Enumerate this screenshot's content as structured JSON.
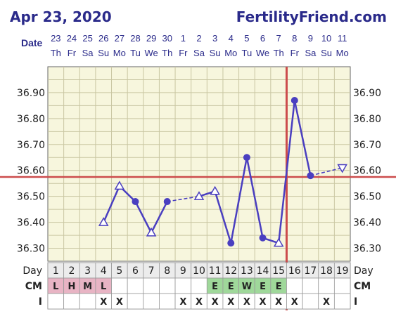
{
  "header": {
    "date": "Apr 23, 2020",
    "site": "FertilityFriend.com"
  },
  "row_labels": {
    "date": "Date",
    "day": "Day",
    "cm": "CM",
    "intercourse": "I"
  },
  "colors": {
    "grid_bg": "#f7f6dd",
    "grid_line": "#c9c6a2",
    "grid_border": "#666666",
    "temp_line": "#4a3fc0",
    "coverline": "#cc4c4c",
    "ovulation_line": "#cc4c4c",
    "cm_menstrual": "#e8b4c4",
    "cm_fertile": "#9fd89a",
    "text_primary": "#2a2a8a"
  },
  "chart_data": {
    "type": "line",
    "title": "",
    "y_axis": {
      "range": [
        36.25,
        37.0
      ],
      "ticks": [
        36.3,
        36.4,
        36.5,
        36.6,
        36.7,
        36.8,
        36.9
      ],
      "tick_labels": [
        "36.30",
        "36.40",
        "36.50",
        "36.60",
        "36.70",
        "36.80",
        "36.90"
      ]
    },
    "dates": [
      "23",
      "24",
      "25",
      "26",
      "27",
      "28",
      "29",
      "30",
      "1",
      "2",
      "3",
      "4",
      "5",
      "6",
      "7",
      "8",
      "9",
      "10",
      "11"
    ],
    "weekdays": [
      "Th",
      "Fr",
      "Sa",
      "Su",
      "Mo",
      "Tu",
      "We",
      "Th",
      "Fr",
      "Sa",
      "Su",
      "Mo",
      "Tu",
      "We",
      "Th",
      "Fr",
      "Sa",
      "Su",
      "Mo"
    ],
    "cycle_days": [
      1,
      2,
      3,
      4,
      5,
      6,
      7,
      8,
      9,
      10,
      11,
      12,
      13,
      14,
      15,
      16,
      17,
      18,
      19
    ],
    "temperatures": [
      null,
      null,
      null,
      36.4,
      36.54,
      36.48,
      36.36,
      36.48,
      null,
      36.5,
      36.52,
      36.32,
      36.65,
      36.34,
      36.32,
      36.87,
      36.58,
      null,
      36.61
    ],
    "markers": [
      "",
      "",
      "",
      "open-triangle",
      "open-triangle",
      "filled",
      "open-triangle",
      "filled",
      "",
      "open-triangle",
      "open-triangle",
      "filled",
      "filled",
      "filled",
      "open-triangle",
      "filled",
      "filled",
      "",
      "open-triangle-down"
    ],
    "dashed_segments": [
      [
        8,
        10
      ],
      [
        17,
        19
      ]
    ],
    "coverline": 36.575,
    "ovulation_day": 15,
    "cervical_mucus": [
      "L",
      "H",
      "M",
      "L",
      "",
      "",
      "",
      "",
      "",
      "",
      "E",
      "E",
      "W",
      "E",
      "E",
      "",
      "",
      "",
      ""
    ],
    "intercourse": [
      "",
      "",
      "",
      "X",
      "X",
      "",
      "",
      "",
      "X",
      "X",
      "X",
      "X",
      "X",
      "X",
      "X",
      "X",
      "",
      "X",
      ""
    ],
    "grid": true
  }
}
